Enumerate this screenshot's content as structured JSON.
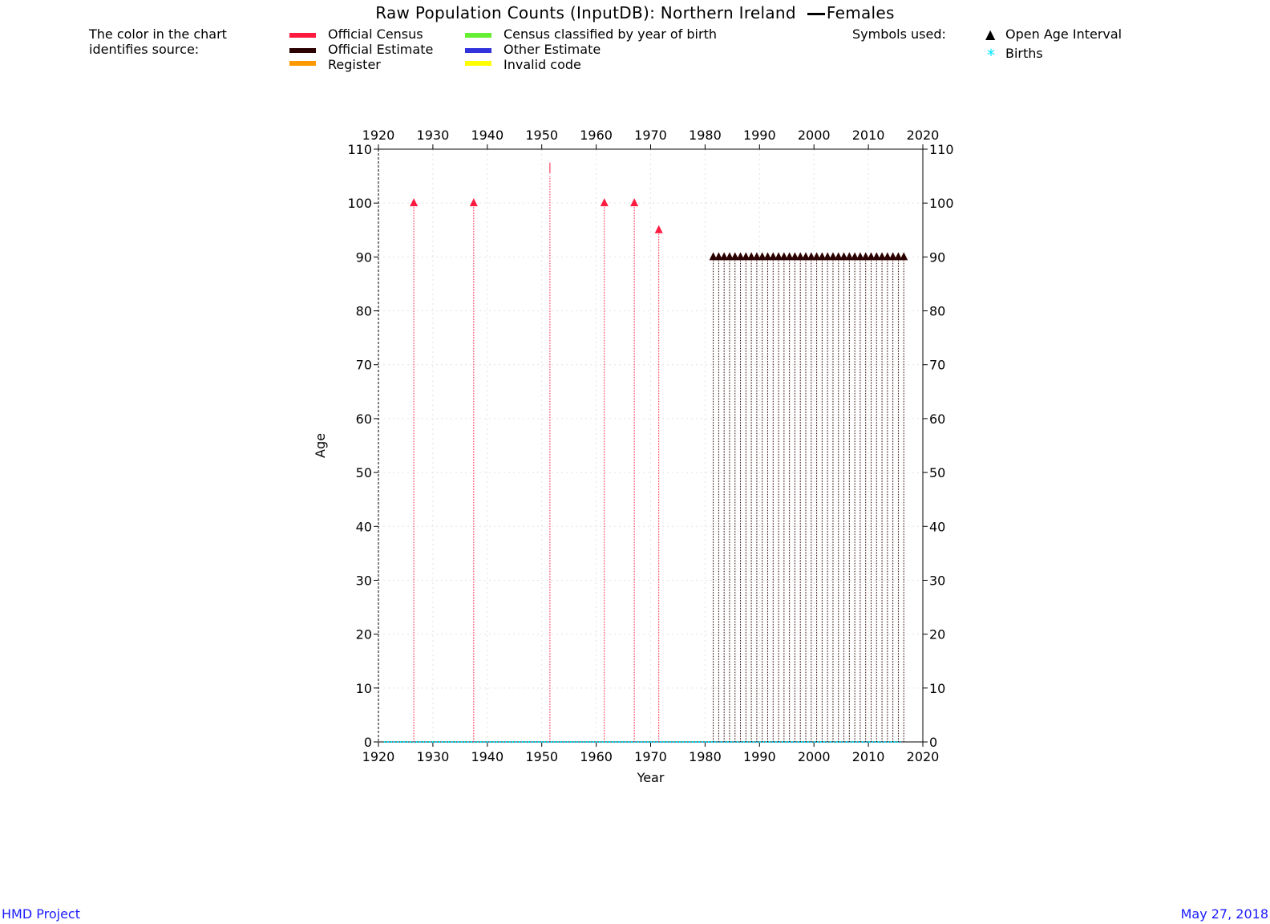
{
  "title": "Raw Population Counts (InputDB): Northern Ireland",
  "title_series": "Females",
  "legend": {
    "intro_line1": "The color in the chart",
    "intro_line2": "identifies source:",
    "items": [
      {
        "label": "Official Census",
        "color": "#ff1a40"
      },
      {
        "label": "Official Estimate",
        "color": "#2b0000"
      },
      {
        "label": "Register",
        "color": "#ff9900"
      },
      {
        "label": "Census classified by year of birth",
        "color": "#66ee33"
      },
      {
        "label": "Other Estimate",
        "color": "#3333dd"
      },
      {
        "label": "Invalid code",
        "color": "#ffff00"
      }
    ]
  },
  "symbols": {
    "title": "Symbols used:",
    "open_age_label": "Open Age Interval",
    "births_label": "Births",
    "open_age_glyph": "▲",
    "births_glyph": "*",
    "births_color": "#00e5ff"
  },
  "footer": {
    "left": "HMD Project",
    "right": "May 27, 2018"
  },
  "chart_data": {
    "type": "scatter",
    "xlabel": "Year",
    "ylabel": "Age",
    "xlim": [
      1920,
      2020
    ],
    "ylim": [
      0,
      110
    ],
    "xticks": [
      1920,
      1930,
      1940,
      1950,
      1960,
      1970,
      1980,
      1990,
      2000,
      2010,
      2020
    ],
    "yticks": [
      0,
      10,
      20,
      30,
      40,
      50,
      60,
      70,
      80,
      90,
      100,
      110
    ],
    "grid": true,
    "series": [
      {
        "name": "Official Census",
        "color": "#ff1a40",
        "points": [
          {
            "year": 1926.5,
            "open_age": 100
          },
          {
            "year": 1937.5,
            "open_age": 100
          },
          {
            "year": 1951.5,
            "open_age": null,
            "max_age": 105
          },
          {
            "year": 1961.5,
            "open_age": 100
          },
          {
            "year": 1967,
            "open_age": 100
          },
          {
            "year": 1971.5,
            "open_age": 95
          }
        ]
      },
      {
        "name": "Official Estimate",
        "color": "#2b0000",
        "years": [
          1981.5,
          1982.5,
          1983.5,
          1984.5,
          1985.5,
          1986.5,
          1987.5,
          1988.5,
          1989.5,
          1990.5,
          1991.5,
          1992.5,
          1993.5,
          1994.5,
          1995.5,
          1996.5,
          1997.5,
          1998.5,
          1999.5,
          2000.5,
          2001.5,
          2002.5,
          2003.5,
          2004.5,
          2005.5,
          2006.5,
          2007.5,
          2008.5,
          2009.5,
          2010.5,
          2011.5,
          2012.5,
          2013.5,
          2014.5,
          2015.5,
          2016.5
        ],
        "open_age": 90
      },
      {
        "name": "Births",
        "color": "#00e5ff",
        "age": 0,
        "x_from": 1921,
        "x_to": 2016
      }
    ]
  }
}
